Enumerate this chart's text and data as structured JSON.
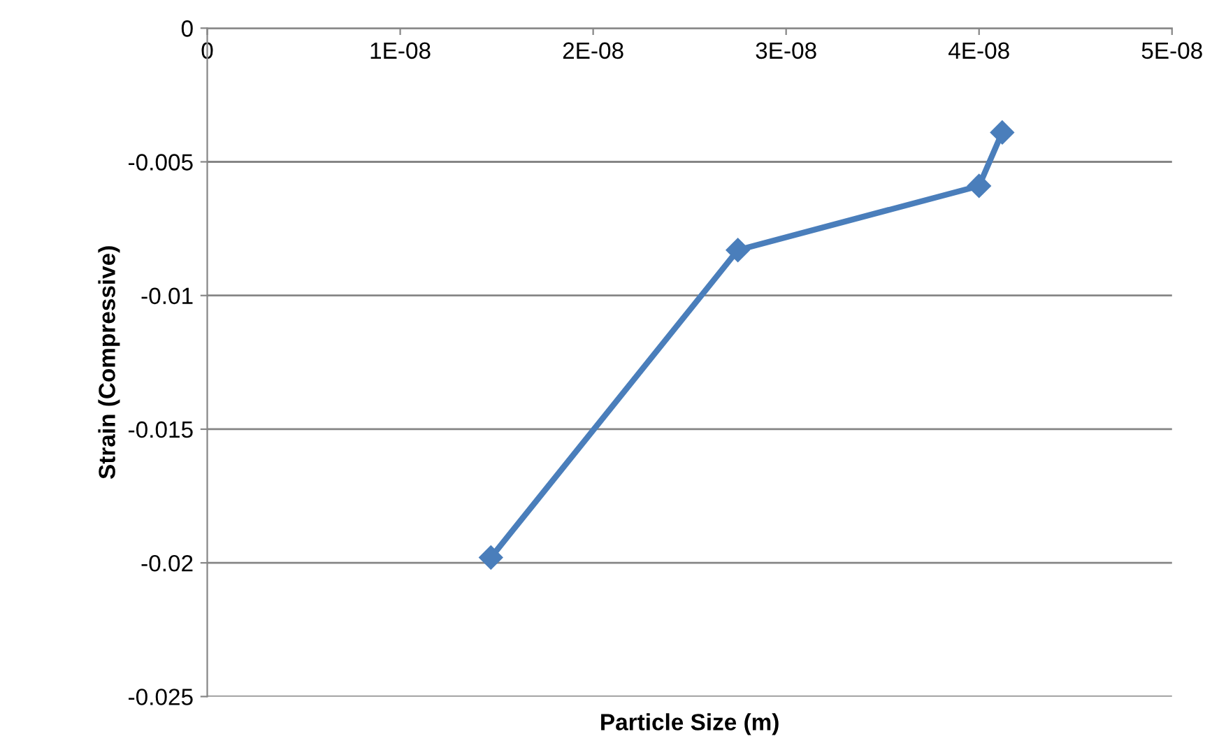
{
  "chart_data": {
    "type": "line",
    "xlabel": "Particle Size (m)",
    "ylabel": "Strain (Compressive)",
    "x": [
      1.47e-08,
      2.75e-08,
      4e-08,
      4.12e-08
    ],
    "series": [
      {
        "color": "#4a7ebb",
        "values": [
          -0.0198,
          -0.0083,
          -0.0059,
          -0.0039
        ]
      }
    ],
    "xlim": [
      0,
      5e-08
    ],
    "xticks": [
      0,
      {
        "value": 1e-08,
        "label": "1E-08"
      },
      {
        "value": 2e-08,
        "label": "2E-08"
      },
      {
        "value": 3e-08,
        "label": "3E-08"
      },
      {
        "value": 4e-08,
        "label": "4E-08"
      },
      {
        "value": 5e-08,
        "label": "5E-08"
      }
    ],
    "ylim": [
      -0.025,
      0
    ],
    "yticks": [
      -0.025,
      -0.02,
      -0.015,
      -0.01,
      -0.005,
      0
    ],
    "grid": "y",
    "marker": "diamond",
    "line_style": "solid",
    "legend": false
  }
}
